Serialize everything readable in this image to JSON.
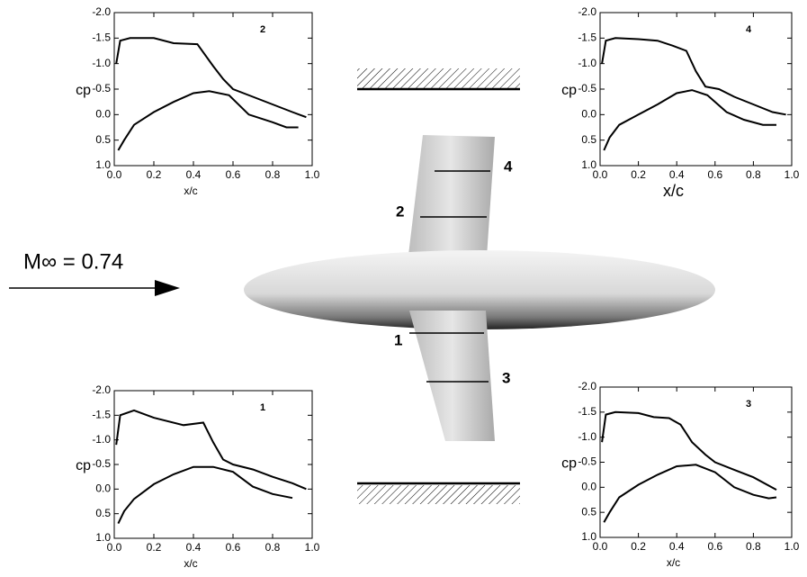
{
  "chart_data": [
    {
      "type": "line",
      "title": "2",
      "xlabel": "x/c",
      "ylabel": "cp",
      "y_inverted": true,
      "xlim": [
        0,
        1
      ],
      "ylim": [
        -2,
        1
      ],
      "xticks": [
        {
          "value": 0,
          "label": "0.0"
        },
        0.2,
        0.4,
        0.6,
        0.8,
        {
          "value": 1,
          "label": "1.0"
        }
      ],
      "yticks": [
        {
          "value": -2,
          "label": "-2.0"
        },
        -1.5,
        {
          "value": -1,
          "label": "-1.0"
        },
        -0.5,
        {
          "value": 0,
          "label": "0.0"
        },
        0.5,
        {
          "value": 1,
          "label": "1.0"
        }
      ],
      "series": [
        {
          "color": "#000000",
          "x": [
            0.01,
            0.03,
            0.08,
            0.2,
            0.3,
            0.42,
            0.5,
            0.55,
            0.6,
            0.7,
            0.8,
            0.9,
            0.97
          ],
          "values": [
            -1.0,
            -1.45,
            -1.5,
            -1.5,
            -1.4,
            -1.38,
            -0.95,
            -0.7,
            -0.5,
            -0.35,
            -0.2,
            -0.05,
            0.05
          ]
        },
        {
          "color": "#000000",
          "x": [
            0.02,
            0.05,
            0.1,
            0.2,
            0.3,
            0.4,
            0.48,
            0.58,
            0.68,
            0.8,
            0.87,
            0.93
          ],
          "values": [
            0.7,
            0.5,
            0.2,
            -0.05,
            -0.25,
            -0.42,
            -0.46,
            -0.38,
            0.0,
            0.15,
            0.25,
            0.25
          ]
        }
      ]
    },
    {
      "type": "line",
      "title": "4",
      "xlabel": "x/c",
      "ylabel": "cp",
      "y_inverted": true,
      "xlim": [
        0,
        1
      ],
      "ylim": [
        -2,
        1
      ],
      "xticks": [
        {
          "value": 0,
          "label": "0.0"
        },
        0.2,
        0.4,
        0.6,
        0.8,
        {
          "value": 1,
          "label": "1.0"
        }
      ],
      "yticks": [
        {
          "value": -2,
          "label": "-2.0"
        },
        -1.5,
        {
          "value": -1,
          "label": "-1.0"
        },
        -0.5,
        {
          "value": 0,
          "label": "0.0"
        },
        0.5,
        {
          "value": 1,
          "label": "1.0"
        }
      ],
      "series": [
        {
          "color": "#000000",
          "x": [
            0.01,
            0.03,
            0.08,
            0.2,
            0.3,
            0.38,
            0.45,
            0.5,
            0.55,
            0.62,
            0.7,
            0.8,
            0.9,
            0.97
          ],
          "values": [
            -1.0,
            -1.45,
            -1.5,
            -1.48,
            -1.45,
            -1.35,
            -1.25,
            -0.85,
            -0.55,
            -0.5,
            -0.35,
            -0.2,
            -0.05,
            0.0
          ]
        },
        {
          "color": "#000000",
          "x": [
            0.02,
            0.05,
            0.1,
            0.2,
            0.3,
            0.4,
            0.48,
            0.56,
            0.66,
            0.75,
            0.85,
            0.92
          ],
          "values": [
            0.7,
            0.45,
            0.2,
            0.0,
            -0.2,
            -0.42,
            -0.48,
            -0.38,
            -0.05,
            0.1,
            0.2,
            0.2
          ]
        }
      ]
    },
    {
      "type": "line",
      "title": "1",
      "xlabel": "x/c",
      "ylabel": "cp",
      "y_inverted": true,
      "xlim": [
        0,
        1
      ],
      "ylim": [
        -2,
        1
      ],
      "xticks": [
        {
          "value": 0,
          "label": "0.0"
        },
        0.2,
        0.4,
        0.6,
        0.8,
        {
          "value": 1,
          "label": "1.0"
        }
      ],
      "yticks": [
        {
          "value": -2,
          "label": "-2.0"
        },
        -1.5,
        {
          "value": -1,
          "label": "-1.0"
        },
        -0.5,
        {
          "value": 0,
          "label": "0.0"
        },
        0.5,
        {
          "value": 1,
          "label": "1.0"
        }
      ],
      "series": [
        {
          "color": "#000000",
          "x": [
            0.01,
            0.03,
            0.1,
            0.2,
            0.35,
            0.45,
            0.5,
            0.55,
            0.6,
            0.7,
            0.8,
            0.9,
            0.97
          ],
          "values": [
            -0.9,
            -1.5,
            -1.6,
            -1.45,
            -1.3,
            -1.35,
            -0.95,
            -0.6,
            -0.5,
            -0.4,
            -0.25,
            -0.12,
            0.0
          ]
        },
        {
          "color": "#000000",
          "x": [
            0.02,
            0.05,
            0.1,
            0.2,
            0.3,
            0.4,
            0.5,
            0.6,
            0.7,
            0.8,
            0.9
          ],
          "values": [
            0.7,
            0.45,
            0.2,
            -0.1,
            -0.3,
            -0.45,
            -0.45,
            -0.35,
            -0.05,
            0.1,
            0.18
          ]
        }
      ]
    },
    {
      "type": "line",
      "title": "3",
      "xlabel": "x/c",
      "ylabel": "cp",
      "y_inverted": true,
      "xlim": [
        0,
        1
      ],
      "ylim": [
        -2,
        1
      ],
      "xticks": [
        {
          "value": 0,
          "label": "0.0"
        },
        0.2,
        0.4,
        0.6,
        0.8,
        {
          "value": 1,
          "label": "1.0"
        }
      ],
      "yticks": [
        {
          "value": -2,
          "label": "-2.0"
        },
        -1.5,
        {
          "value": -1,
          "label": "-1.0"
        },
        -0.5,
        {
          "value": 0,
          "label": "0.0"
        },
        0.5,
        {
          "value": 1,
          "label": "1.0"
        }
      ],
      "series": [
        {
          "color": "#000000",
          "x": [
            0.01,
            0.03,
            0.08,
            0.2,
            0.28,
            0.36,
            0.42,
            0.48,
            0.55,
            0.6,
            0.7,
            0.8,
            0.92
          ],
          "values": [
            -0.9,
            -1.45,
            -1.5,
            -1.48,
            -1.4,
            -1.38,
            -1.25,
            -0.9,
            -0.65,
            -0.5,
            -0.35,
            -0.2,
            0.05
          ]
        },
        {
          "color": "#000000",
          "x": [
            0.02,
            0.05,
            0.1,
            0.2,
            0.3,
            0.4,
            0.5,
            0.6,
            0.7,
            0.8,
            0.88,
            0.92
          ],
          "values": [
            0.7,
            0.5,
            0.2,
            -0.05,
            -0.25,
            -0.42,
            -0.45,
            -0.3,
            0.0,
            0.15,
            0.22,
            0.2
          ]
        }
      ]
    }
  ],
  "diagram": {
    "mach_label": "M∞ = 0.74",
    "stations": [
      "1",
      "2",
      "3",
      "4"
    ]
  }
}
